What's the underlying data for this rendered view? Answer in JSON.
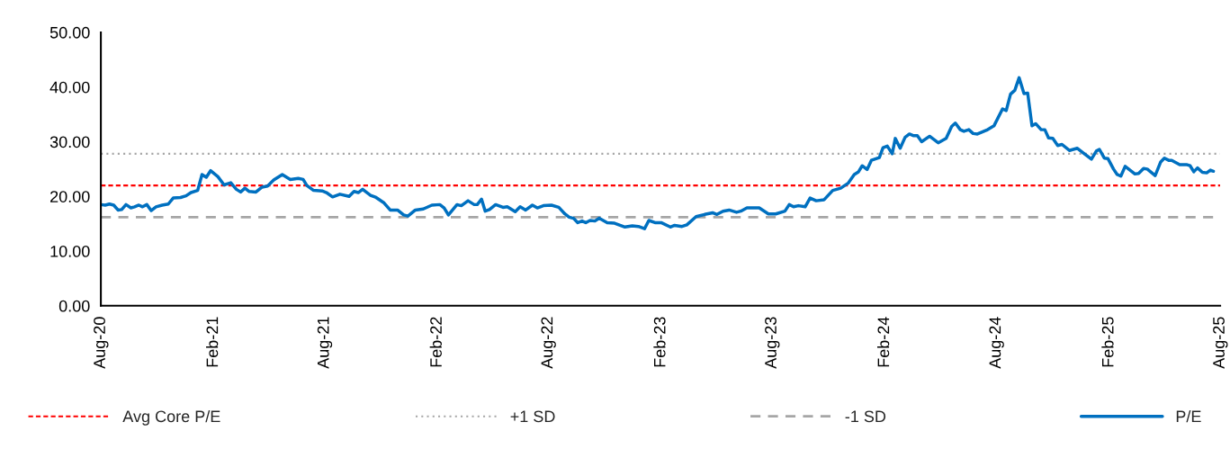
{
  "chart_data": {
    "type": "line",
    "x": [
      "2020-08-01",
      "2020-08-08",
      "2020-08-15",
      "2020-08-22",
      "2020-08-29",
      "2020-09-04",
      "2020-09-11",
      "2020-09-19",
      "2020-09-25",
      "2020-10-02",
      "2020-10-08",
      "2020-10-15",
      "2020-10-22",
      "2020-10-30",
      "2020-11-09",
      "2020-11-19",
      "2020-11-27",
      "2020-12-09",
      "2020-12-18",
      "2020-12-26",
      "2021-01-06",
      "2021-01-13",
      "2021-01-20",
      "2021-01-27",
      "2021-02-08",
      "2021-02-18",
      "2021-03-01",
      "2021-03-10",
      "2021-03-17",
      "2021-03-24",
      "2021-03-31",
      "2021-04-11",
      "2021-04-21",
      "2021-04-30",
      "2021-05-10",
      "2021-05-24",
      "2021-06-06",
      "2021-06-19",
      "2021-06-27",
      "2021-07-03",
      "2021-07-14",
      "2021-07-28",
      "2021-08-04",
      "2021-08-14",
      "2021-08-26",
      "2021-09-10",
      "2021-09-18",
      "2021-09-25",
      "2021-10-02",
      "2021-10-15",
      "2021-10-24",
      "2021-11-06",
      "2021-11-16",
      "2021-11-28",
      "2021-12-08",
      "2021-12-15",
      "2021-12-27",
      "2022-01-09",
      "2022-01-23",
      "2022-02-05",
      "2022-02-12",
      "2022-02-19",
      "2022-03-05",
      "2022-03-12",
      "2022-03-23",
      "2022-04-02",
      "2022-04-07",
      "2022-04-14",
      "2022-04-20",
      "2022-04-27",
      "2022-05-07",
      "2022-05-19",
      "2022-05-26",
      "2022-06-08",
      "2022-06-16",
      "2022-06-25",
      "2022-07-06",
      "2022-07-14",
      "2022-07-24",
      "2022-08-06",
      "2022-08-18",
      "2022-08-28",
      "2022-09-04",
      "2022-09-11",
      "2022-09-18",
      "2022-09-25",
      "2022-10-01",
      "2022-10-08",
      "2022-10-16",
      "2022-10-23",
      "2022-11-05",
      "2022-11-17",
      "2022-12-04",
      "2022-12-16",
      "2022-12-26",
      "2023-01-05",
      "2023-01-12",
      "2023-01-22",
      "2023-02-01",
      "2023-02-16",
      "2023-02-23",
      "2023-03-07",
      "2023-03-15",
      "2023-03-30",
      "2023-04-13",
      "2023-04-26",
      "2023-05-03",
      "2023-05-13",
      "2023-05-23",
      "2023-06-04",
      "2023-06-11",
      "2023-06-21",
      "2023-07-11",
      "2023-07-26",
      "2023-08-07",
      "2023-08-22",
      "2023-08-29",
      "2023-09-05",
      "2023-09-13",
      "2023-09-24",
      "2023-10-02",
      "2023-10-12",
      "2023-10-25",
      "2023-11-08",
      "2023-11-21",
      "2023-12-03",
      "2023-12-13",
      "2023-12-20",
      "2023-12-26",
      "2024-01-03",
      "2024-01-10",
      "2024-01-23",
      "2024-01-29",
      "2024-02-05",
      "2024-02-13",
      "2024-02-18",
      "2024-02-26",
      "2024-03-05",
      "2024-03-12",
      "2024-03-19",
      "2024-03-25",
      "2024-04-01",
      "2024-04-14",
      "2024-04-28",
      "2024-05-11",
      "2024-05-20",
      "2024-05-26",
      "2024-06-03",
      "2024-06-09",
      "2024-06-17",
      "2024-06-24",
      "2024-07-01",
      "2024-07-16",
      "2024-07-28",
      "2024-08-11",
      "2024-08-17",
      "2024-08-24",
      "2024-08-31",
      "2024-09-07",
      "2024-09-15",
      "2024-09-21",
      "2024-09-28",
      "2024-10-04",
      "2024-10-13",
      "2024-10-19",
      "2024-10-25",
      "2024-11-01",
      "2024-11-09",
      "2024-11-16",
      "2024-11-28",
      "2024-12-11",
      "2024-12-20",
      "2025-01-03",
      "2025-01-11",
      "2025-01-16",
      "2025-01-24",
      "2025-01-30",
      "2025-02-08",
      "2025-02-14",
      "2025-02-20",
      "2025-02-27",
      "2025-03-15",
      "2025-03-21",
      "2025-03-29",
      "2025-04-04",
      "2025-04-17",
      "2025-04-26",
      "2025-05-02",
      "2025-05-09",
      "2025-05-14",
      "2025-05-27",
      "2025-06-08",
      "2025-06-13",
      "2025-06-19",
      "2025-06-25",
      "2025-07-03",
      "2025-07-10",
      "2025-07-16",
      "2025-07-21"
    ],
    "series": [
      {
        "name": "P/E",
        "color": "#0070c0",
        "values": [
          18.5,
          18.4,
          18.6,
          18.4,
          17.5,
          17.6,
          18.5,
          17.9,
          18.1,
          18.4,
          18.1,
          18.5,
          17.4,
          18.1,
          18.4,
          18.6,
          19.7,
          19.8,
          20.1,
          20.7,
          21.1,
          24.0,
          23.5,
          24.7,
          23.6,
          22.1,
          22.5,
          21.3,
          20.8,
          21.5,
          20.9,
          20.8,
          21.7,
          21.9,
          23.0,
          24.0,
          23.1,
          23.3,
          23.1,
          22.0,
          21.1,
          21.0,
          20.7,
          19.9,
          20.4,
          20.0,
          20.9,
          20.7,
          21.3,
          20.2,
          19.8,
          18.8,
          17.5,
          17.5,
          16.6,
          16.4,
          17.5,
          17.7,
          18.4,
          18.5,
          17.9,
          16.6,
          18.5,
          18.3,
          19.2,
          18.5,
          18.5,
          19.5,
          17.3,
          17.6,
          18.5,
          18.0,
          18.1,
          17.2,
          18.1,
          17.5,
          18.4,
          17.9,
          18.3,
          18.4,
          18.0,
          16.8,
          16.2,
          16.0,
          15.2,
          15.5,
          15.2,
          15.6,
          15.5,
          16.0,
          15.2,
          15.1,
          14.4,
          14.6,
          14.5,
          14.1,
          15.6,
          15.2,
          15.2,
          14.4,
          14.7,
          14.5,
          14.8,
          16.3,
          16.7,
          17.0,
          16.7,
          17.3,
          17.5,
          17.1,
          17.3,
          17.9,
          17.9,
          16.8,
          16.8,
          17.3,
          18.5,
          18.1,
          18.3,
          18.1,
          19.7,
          19.2,
          19.4,
          21.1,
          21.5,
          22.4,
          24.0,
          24.5,
          25.6,
          24.9,
          26.6,
          27.1,
          28.9,
          29.2,
          27.8,
          30.6,
          28.8,
          30.8,
          31.4,
          31.1,
          31.1,
          30.0,
          31.0,
          29.8,
          30.6,
          32.8,
          33.4,
          32.2,
          31.9,
          32.2,
          31.5,
          31.4,
          32.1,
          32.9,
          36.0,
          35.7,
          38.7,
          39.4,
          41.7,
          38.8,
          38.9,
          32.9,
          33.3,
          32.2,
          32.2,
          30.7,
          30.6,
          29.3,
          29.5,
          28.4,
          28.8,
          28.0,
          26.8,
          28.3,
          28.6,
          27.0,
          26.9,
          25.0,
          24.0,
          23.7,
          25.5,
          24.1,
          24.2,
          25.1,
          25.0,
          23.8,
          26.3,
          27.0,
          26.6,
          26.6,
          25.8,
          25.8,
          25.6,
          24.5,
          25.2,
          24.4,
          24.3,
          24.8,
          24.6
        ]
      }
    ],
    "ref_lines": [
      {
        "axis": "y",
        "value": 22.0,
        "label": "Avg Core P/E",
        "color": "#ff0000",
        "line_style": "dashed"
      },
      {
        "axis": "y",
        "value": 27.8,
        "label": "+1 SD",
        "color": "#a6a6a6",
        "line_style": "dotted"
      },
      {
        "axis": "y",
        "value": 16.2,
        "label": "-1 SD",
        "color": "#a6a6a6",
        "line_style": "dashed"
      }
    ],
    "xlim": [
      "2020-08-01",
      "2025-08-01"
    ],
    "xticks": [
      {
        "value": "2020-08-01",
        "label": "Aug-20"
      },
      {
        "value": "2021-02-01",
        "label": "Feb-21"
      },
      {
        "value": "2021-08-01",
        "label": "Aug-21"
      },
      {
        "value": "2022-02-01",
        "label": "Feb-22"
      },
      {
        "value": "2022-08-01",
        "label": "Aug-22"
      },
      {
        "value": "2023-02-01",
        "label": "Feb-23"
      },
      {
        "value": "2023-08-01",
        "label": "Aug-23"
      },
      {
        "value": "2024-02-01",
        "label": "Feb-24"
      },
      {
        "value": "2024-08-01",
        "label": "Aug-24"
      },
      {
        "value": "2025-02-01",
        "label": "Feb-25"
      },
      {
        "value": "2025-08-01",
        "label": "Aug-25"
      }
    ],
    "ylim": [
      0,
      50
    ],
    "yticks": [
      {
        "value": 0,
        "label": "0.00"
      },
      {
        "value": 10,
        "label": "10.00"
      },
      {
        "value": 20,
        "label": "20.00"
      },
      {
        "value": 30,
        "label": "30.00"
      },
      {
        "value": 40,
        "label": "40.00"
      },
      {
        "value": 50,
        "label": "50.00"
      }
    ],
    "legend": "bottom",
    "grid": false,
    "marker": "none",
    "line_style": "solid"
  }
}
